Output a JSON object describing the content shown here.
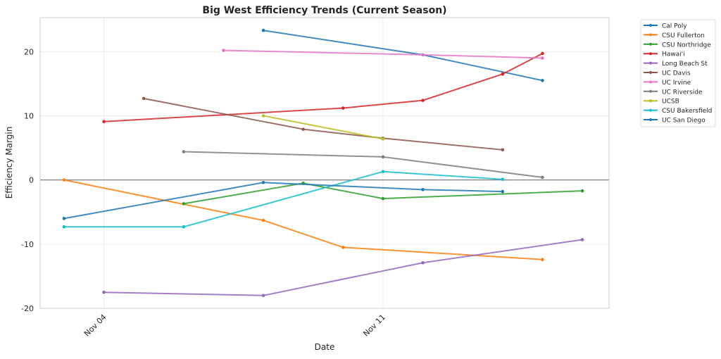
{
  "chart_data": {
    "type": "line",
    "title": "Big West Efficiency Trends (Current Season)",
    "xlabel": "Date",
    "ylabel": "Efficiency Margin",
    "x_unit": "day of November",
    "xlim": [
      2.4,
      16.67
    ],
    "ylim": [
      -20,
      25.3
    ],
    "xticks": [
      {
        "value": 4,
        "label": "Nov 04"
      },
      {
        "value": 11,
        "label": "Nov 11"
      }
    ],
    "yticks": [
      -20,
      -10,
      0,
      10,
      20
    ],
    "grid": true,
    "reference_line_y": 0,
    "legend_position": "outside-top-right",
    "series": [
      {
        "name": "Cal Poly",
        "color": "#1f77b4",
        "x": [
          8,
          12,
          15
        ],
        "y": [
          23.3,
          19.5,
          15.5
        ]
      },
      {
        "name": "CSU Fullerton",
        "color": "#ff7f0e",
        "x": [
          3,
          8,
          10,
          15
        ],
        "y": [
          0.0,
          -6.3,
          -10.5,
          -12.4
        ]
      },
      {
        "name": "CSU Northridge",
        "color": "#2ca02c",
        "x": [
          6,
          9,
          11,
          16
        ],
        "y": [
          -3.7,
          -0.5,
          -2.9,
          -1.7
        ]
      },
      {
        "name": "Hawai'i",
        "color": "#d62728",
        "x": [
          4,
          10,
          12,
          14,
          15
        ],
        "y": [
          9.1,
          11.2,
          12.4,
          16.5,
          19.7
        ]
      },
      {
        "name": "Long Beach St",
        "color": "#9467bd",
        "x": [
          4,
          8,
          12,
          16
        ],
        "y": [
          -17.5,
          -18.0,
          -12.9,
          -9.3
        ]
      },
      {
        "name": "UC Davis",
        "color": "#8c564b",
        "x": [
          5,
          9,
          11,
          14
        ],
        "y": [
          12.7,
          7.9,
          6.5,
          4.7
        ]
      },
      {
        "name": "UC Irvine",
        "color": "#e377c2",
        "x": [
          7,
          12,
          15
        ],
        "y": [
          20.2,
          19.5,
          19.0
        ]
      },
      {
        "name": "UC Riverside",
        "color": "#7f7f7f",
        "x": [
          6,
          11,
          15
        ],
        "y": [
          4.4,
          3.6,
          0.4
        ]
      },
      {
        "name": "UCSB",
        "color": "#bcbd22",
        "x": [
          8,
          11
        ],
        "y": [
          10.0,
          6.4
        ]
      },
      {
        "name": "CSU Bakersfield",
        "color": "#17becf",
        "x": [
          3,
          6,
          11,
          14
        ],
        "y": [
          -7.3,
          -7.3,
          1.3,
          0.1
        ]
      },
      {
        "name": "UC San Diego",
        "color": "#1f77b4",
        "x": [
          3,
          8,
          12,
          14
        ],
        "y": [
          -6.0,
          -0.4,
          -1.5,
          -1.8
        ]
      }
    ]
  }
}
